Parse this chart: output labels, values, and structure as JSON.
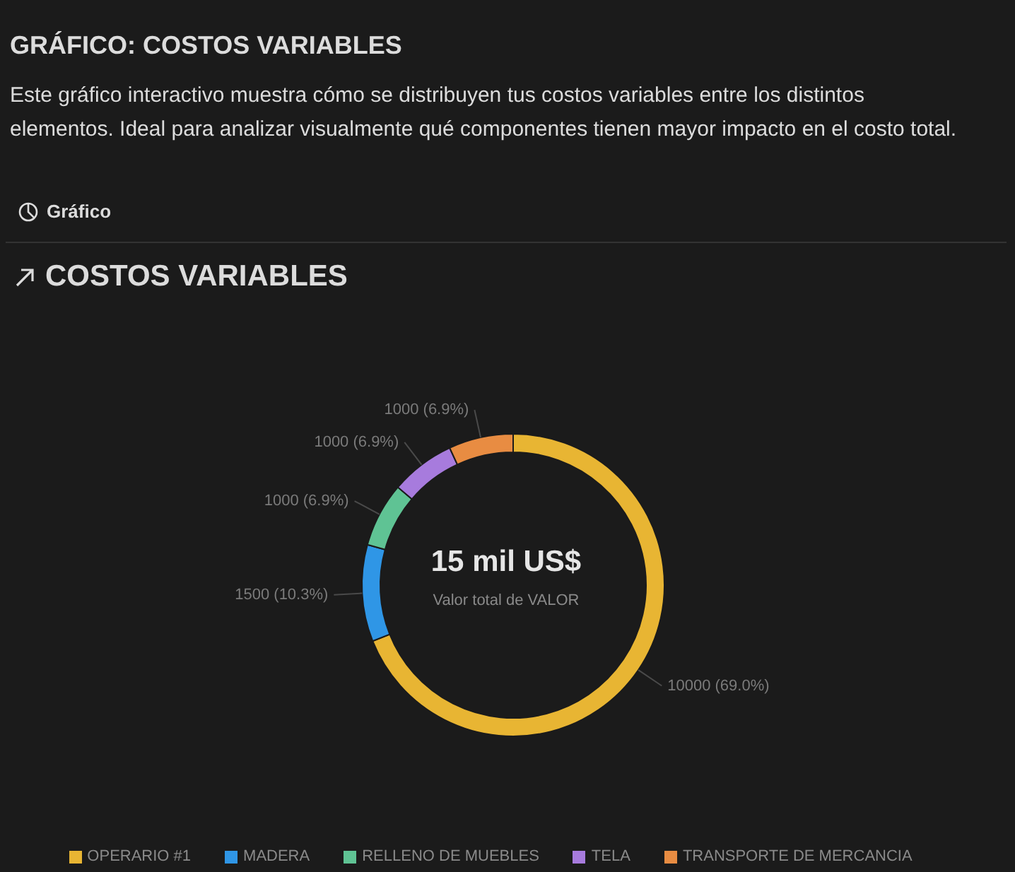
{
  "chart_data": {
    "type": "donut",
    "title": "GRÁFICO: COSTOS VARIABLES",
    "subtitle": "Este gráfico interactivo muestra cómo se distribuyen tus costos variables entre los distintos elementos. Ideal para analizar visualmente qué componentes tienen mayor impacto en el costo total.",
    "categories": [
      "OPERARIO #1",
      "MADERA",
      "RELLENO DE MUEBLES",
      "TELA",
      "TRANSPORTE DE MERCANCIA"
    ],
    "values": [
      10000,
      1500,
      1000,
      1000,
      1000
    ],
    "colors": [
      "#e8b533",
      "#2f96e6",
      "#5fc394",
      "#a77bdd",
      "#e88c42"
    ],
    "value_labels": [
      "10000 (69.0%)",
      "1500 (10.3%)",
      "1000 (6.9%)",
      "1000 (6.9%)",
      "1000 (6.9%)"
    ],
    "annotations": [
      "Gráfico",
      "COSTOS VARIABLES",
      "15 mil US$",
      "Valor total de VALOR"
    ],
    "legend": "bottom"
  }
}
